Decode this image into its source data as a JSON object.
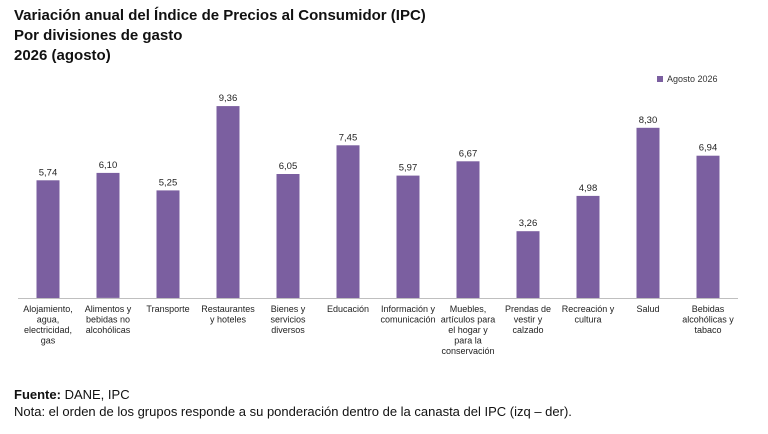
{
  "header": {
    "title": "Variación anual del Índice de Precios al Consumidor (IPC)",
    "subtitle": "Por divisiones de gasto",
    "period": "2026 (agosto)"
  },
  "footer": {
    "source_label": "Fuente:",
    "source_value": " DANE, IPC",
    "note": "Nota: el orden de los grupos responde a su ponderación dentro de la canasta del IPC (izq – der)."
  },
  "colors": {
    "bar": "#7B5FA0",
    "axis": "#BFBFBF"
  },
  "chart_data": {
    "type": "bar",
    "categories": [
      [
        "Alojamiento,",
        "agua,",
        "electricidad,",
        "gas"
      ],
      [
        "Alimentos y",
        "bebidas no",
        "alcohólicas"
      ],
      [
        "Transporte"
      ],
      [
        "Restaurantes",
        "y hoteles"
      ],
      [
        "Bienes y",
        "servicios",
        "diversos"
      ],
      [
        "Educación"
      ],
      [
        "Información y",
        "comunicación"
      ],
      [
        "Muebles,",
        "artículos para",
        "el hogar y",
        "para la",
        "conservación"
      ],
      [
        "Prendas de",
        "vestir y",
        "calzado"
      ],
      [
        "Recreación y",
        "cultura"
      ],
      [
        "Salud"
      ],
      [
        "Bebidas",
        "alcohólicas y",
        "tabaco"
      ]
    ],
    "series": [
      {
        "name": "Agosto 2026",
        "values": [
          5.74,
          6.1,
          5.25,
          9.36,
          6.05,
          7.45,
          5.97,
          6.67,
          3.26,
          4.98,
          8.3,
          6.94
        ],
        "labels": [
          "5,74",
          "6,10",
          "5,25",
          "9,36",
          "6,05",
          "7,45",
          "5,97",
          "6,67",
          "3,26",
          "4,98",
          "8,30",
          "6,94"
        ]
      }
    ],
    "ylim": [
      0,
      10
    ],
    "grid": false,
    "legend_position": "top-right"
  }
}
